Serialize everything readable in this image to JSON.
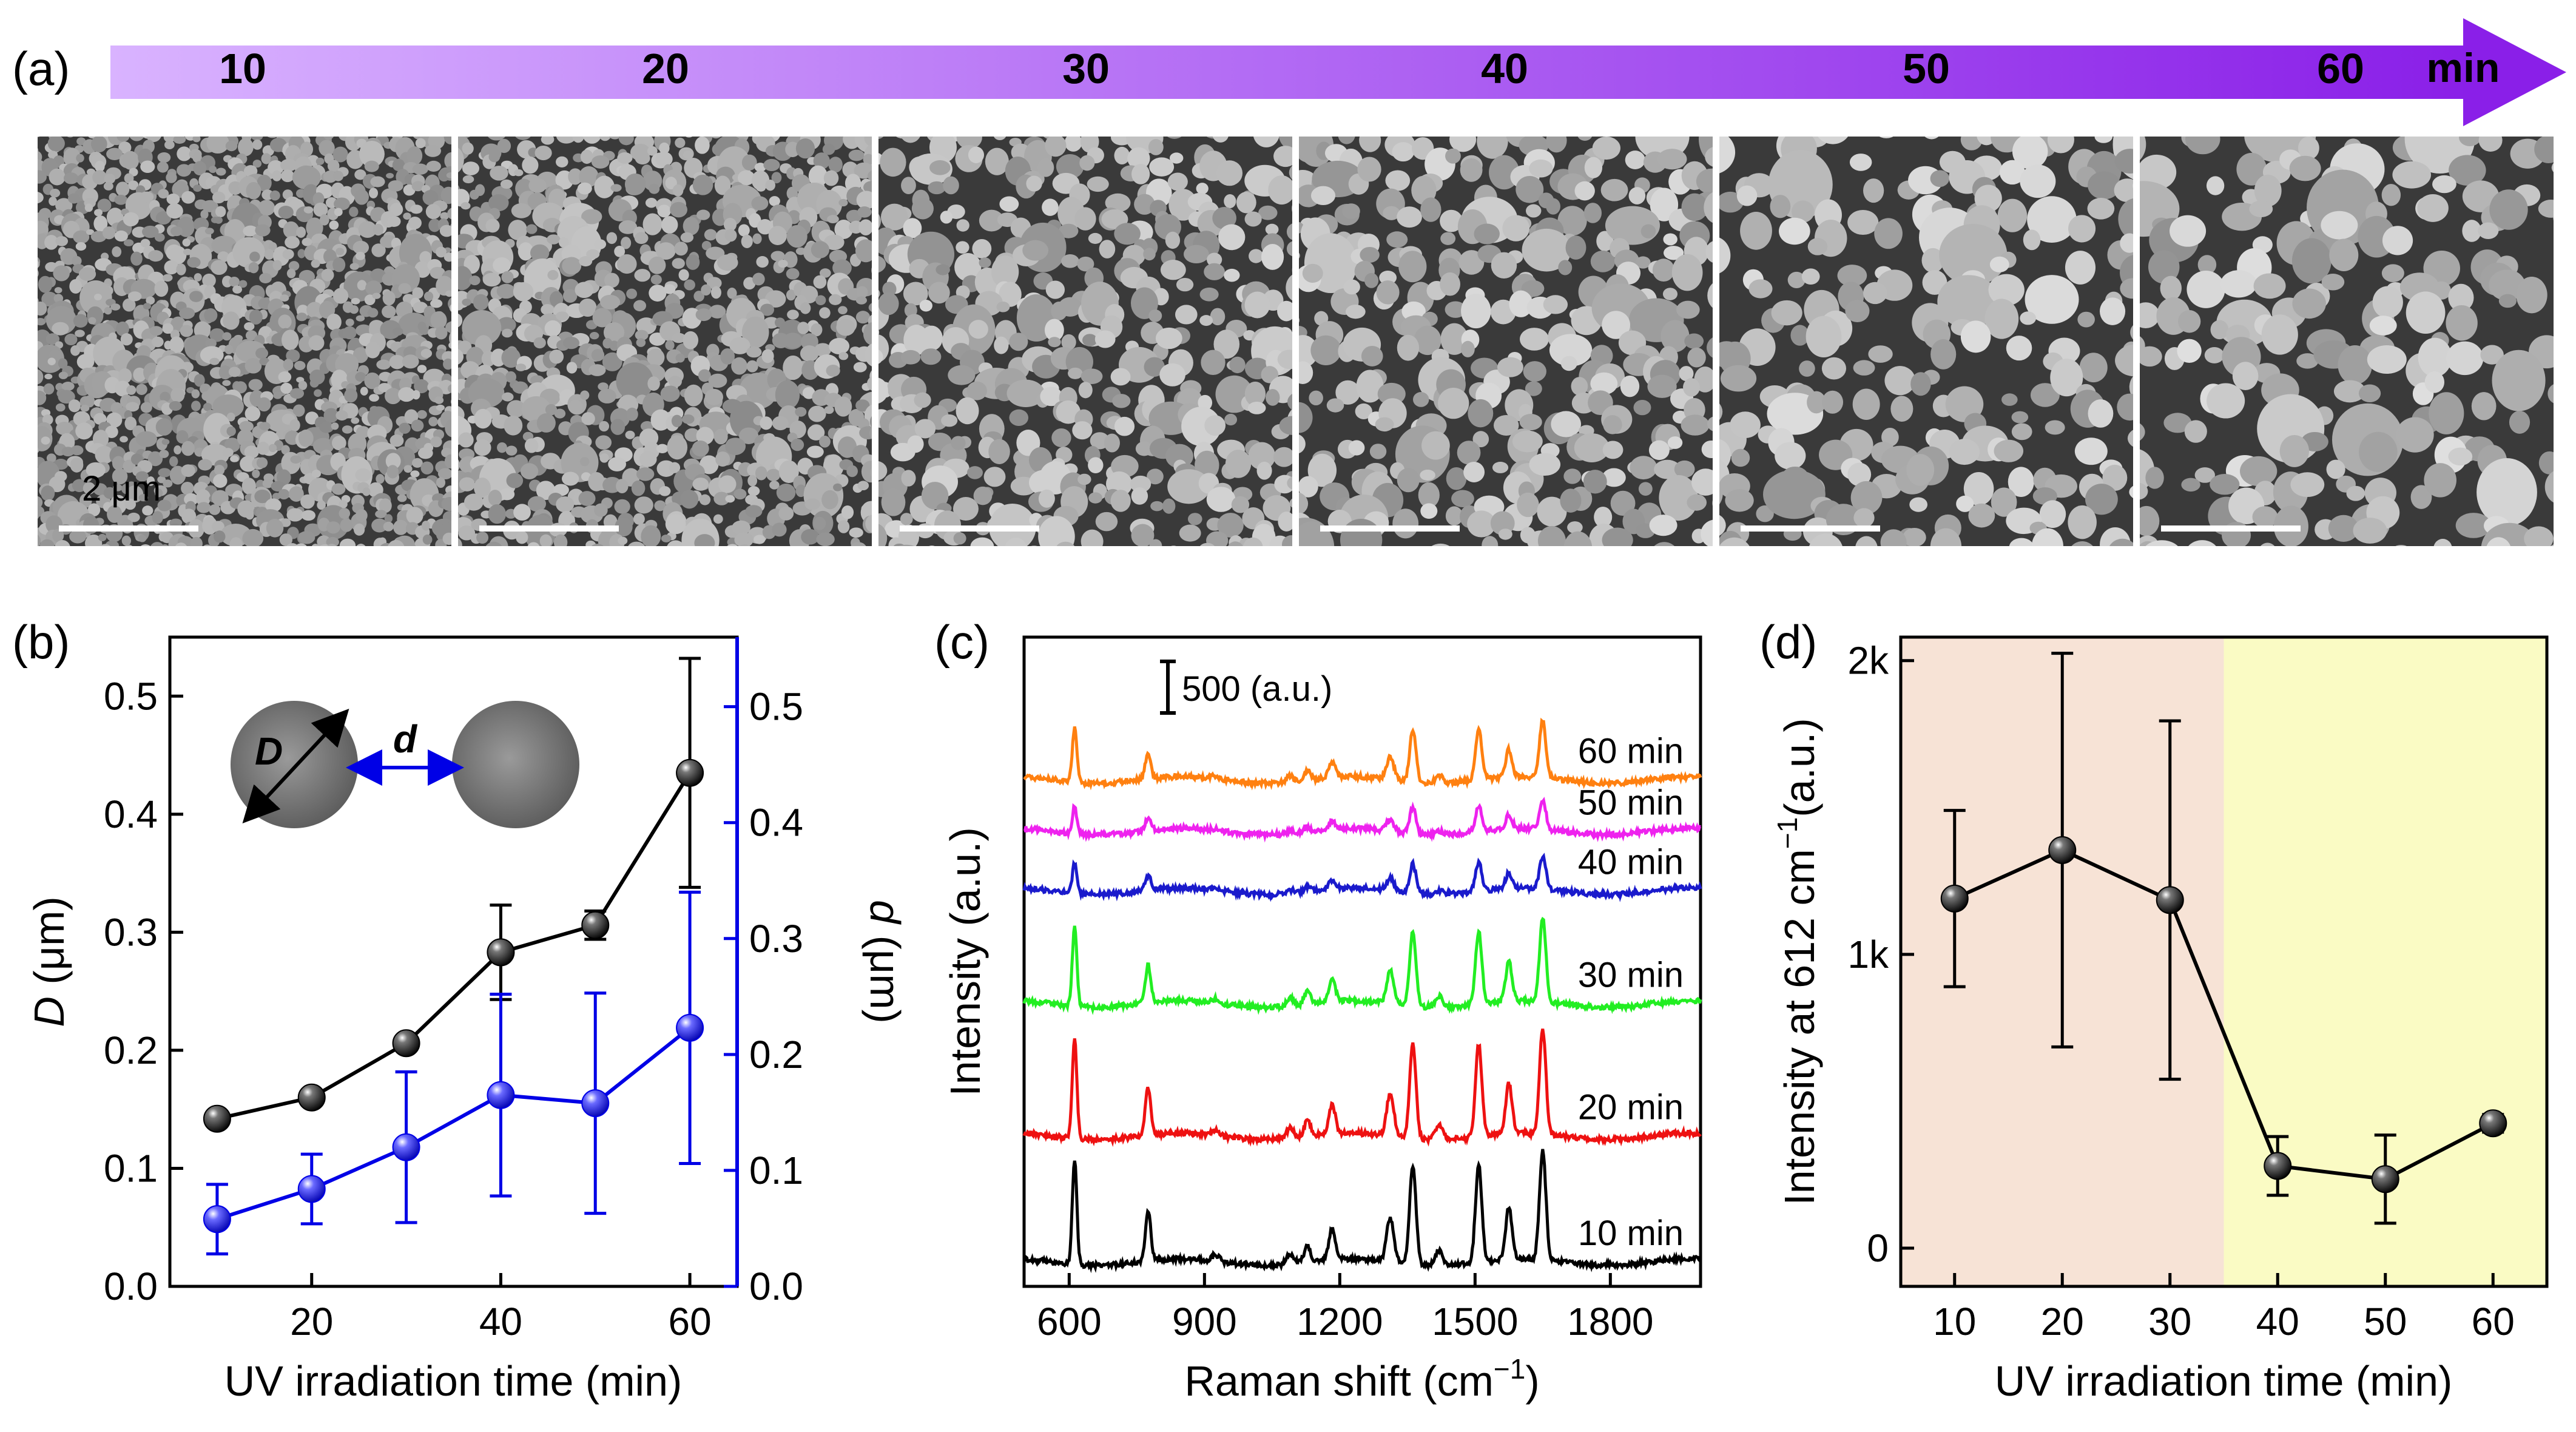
{
  "panel_a": {
    "label": "(a)",
    "arrow": {
      "color_start": "#d9b3ff",
      "color_end": "#8a1fe8",
      "unit": "min",
      "times": [
        "10",
        "20",
        "30",
        "40",
        "50",
        "60"
      ]
    },
    "scale_bar_label": "2 μm",
    "images": [
      {
        "time": "10",
        "density": 0.9,
        "grain": 1.0,
        "bright": 0.55
      },
      {
        "time": "20",
        "density": 0.85,
        "grain": 1.2,
        "bright": 0.6
      },
      {
        "time": "30",
        "density": 0.75,
        "grain": 1.6,
        "bright": 0.72
      },
      {
        "time": "40",
        "density": 0.7,
        "grain": 1.8,
        "bright": 0.75
      },
      {
        "time": "50",
        "density": 0.65,
        "grain": 2.1,
        "bright": 0.78
      },
      {
        "time": "60",
        "density": 0.62,
        "grain": 2.3,
        "bright": 0.8
      }
    ]
  },
  "chart_data": [
    {
      "panel": "(b)",
      "type": "scatter",
      "xlabel": "UV irradiation time (min)",
      "ylabel_left": "D",
      "ylabel_left_unit": " (μm)",
      "ylabel_right": "d",
      "ylabel_right_unit": " (μm)",
      "xlim": [
        5,
        65
      ],
      "ylim_left": [
        0,
        0.55
      ],
      "ylim_right": [
        0,
        0.56
      ],
      "x_ticks": [
        20,
        40,
        60
      ],
      "y_ticks_left": [
        "0.0",
        "0.1",
        "0.2",
        "0.3",
        "0.4",
        "0.5"
      ],
      "y_ticks_right": [
        "0.0",
        "0.1",
        "0.2",
        "0.3",
        "0.4",
        "0.5"
      ],
      "series": [
        {
          "name": "D",
          "axis": "left",
          "color": "#000000",
          "x": [
            10,
            20,
            30,
            40,
            50,
            60
          ],
          "values": [
            0.142,
            0.16,
            0.206,
            0.283,
            0.306,
            0.435
          ],
          "err": [
            0.0,
            0.0,
            0.0,
            0.04,
            0.012,
            0.097
          ]
        },
        {
          "name": "d",
          "axis": "right",
          "color": "#0000e6",
          "x": [
            10,
            20,
            30,
            40,
            50,
            60
          ],
          "values": [
            0.058,
            0.084,
            0.12,
            0.165,
            0.158,
            0.223
          ],
          "err": [
            0.03,
            0.03,
            0.065,
            0.087,
            0.095,
            0.117
          ]
        }
      ],
      "inset": {
        "D_label": "D",
        "d_label": "d"
      }
    },
    {
      "panel": "(c)",
      "type": "line",
      "xlabel": "Raman shift (cm",
      "xlabel_sup": "−1",
      "xlabel_tail": ")",
      "ylabel": "Intensity (a.u.)",
      "xlim": [
        500,
        2000
      ],
      "x_ticks": [
        600,
        900,
        1200,
        1500,
        1800
      ],
      "scale_bar_label": "500 (a.u.)",
      "peaks": [
        {
          "pos": 612,
          "w": 5,
          "rel": 1.0
        },
        {
          "pos": 775,
          "w": 6,
          "rel": 0.48
        },
        {
          "pos": 925,
          "w": 8,
          "rel": 0.06
        },
        {
          "pos": 1090,
          "w": 8,
          "rel": 0.1
        },
        {
          "pos": 1128,
          "w": 7,
          "rel": 0.16
        },
        {
          "pos": 1183,
          "w": 7,
          "rel": 0.3
        },
        {
          "pos": 1312,
          "w": 8,
          "rel": 0.42
        },
        {
          "pos": 1362,
          "w": 7,
          "rel": 0.95
        },
        {
          "pos": 1420,
          "w": 8,
          "rel": 0.14
        },
        {
          "pos": 1508,
          "w": 7,
          "rel": 0.92
        },
        {
          "pos": 1575,
          "w": 7,
          "rel": 0.5
        },
        {
          "pos": 1650,
          "w": 7,
          "rel": 1.05
        }
      ],
      "series": [
        {
          "name": "10 min",
          "color": "#000000",
          "offset": 0,
          "scale": 650
        },
        {
          "name": "20 min",
          "color": "#ee1111",
          "offset": 780,
          "scale": 620
        },
        {
          "name": "30 min",
          "color": "#22ee22",
          "offset": 1600,
          "scale": 490
        },
        {
          "name": "40 min",
          "color": "#1a1acc",
          "offset": 2300,
          "scale": 190
        },
        {
          "name": "50 min",
          "color": "#ee22ee",
          "offset": 2670,
          "scale": 170
        },
        {
          "name": "60 min",
          "color": "#ff8010",
          "offset": 2990,
          "scale": 340
        }
      ]
    },
    {
      "panel": "(d)",
      "type": "scatter",
      "xlabel": "UV irradiation time (min)",
      "ylabel": "Intensity at 612 cm",
      "ylabel_sup": "−1",
      "ylabel_tail": "(a.u.)",
      "xlim": [
        5,
        65
      ],
      "ylim": [
        -130,
        2080
      ],
      "x_ticks": [
        10,
        20,
        30,
        40,
        50,
        60
      ],
      "y_ticks": [
        {
          "v": 0,
          "t": "0"
        },
        {
          "v": 1000,
          "t": "1k"
        },
        {
          "v": 2000,
          "t": "2k"
        }
      ],
      "regions": [
        {
          "from": 5,
          "to": 35,
          "color": "#f7e3d6"
        },
        {
          "from": 35,
          "to": 65,
          "color": "#fafbc4"
        }
      ],
      "series": [
        {
          "name": "Intensity at 612 cm-1",
          "color": "#000000",
          "x": [
            10,
            20,
            30,
            40,
            50,
            60
          ],
          "values": [
            1190,
            1355,
            1185,
            280,
            235,
            425
          ],
          "err": [
            300,
            670,
            610,
            100,
            150,
            30
          ]
        }
      ]
    }
  ]
}
